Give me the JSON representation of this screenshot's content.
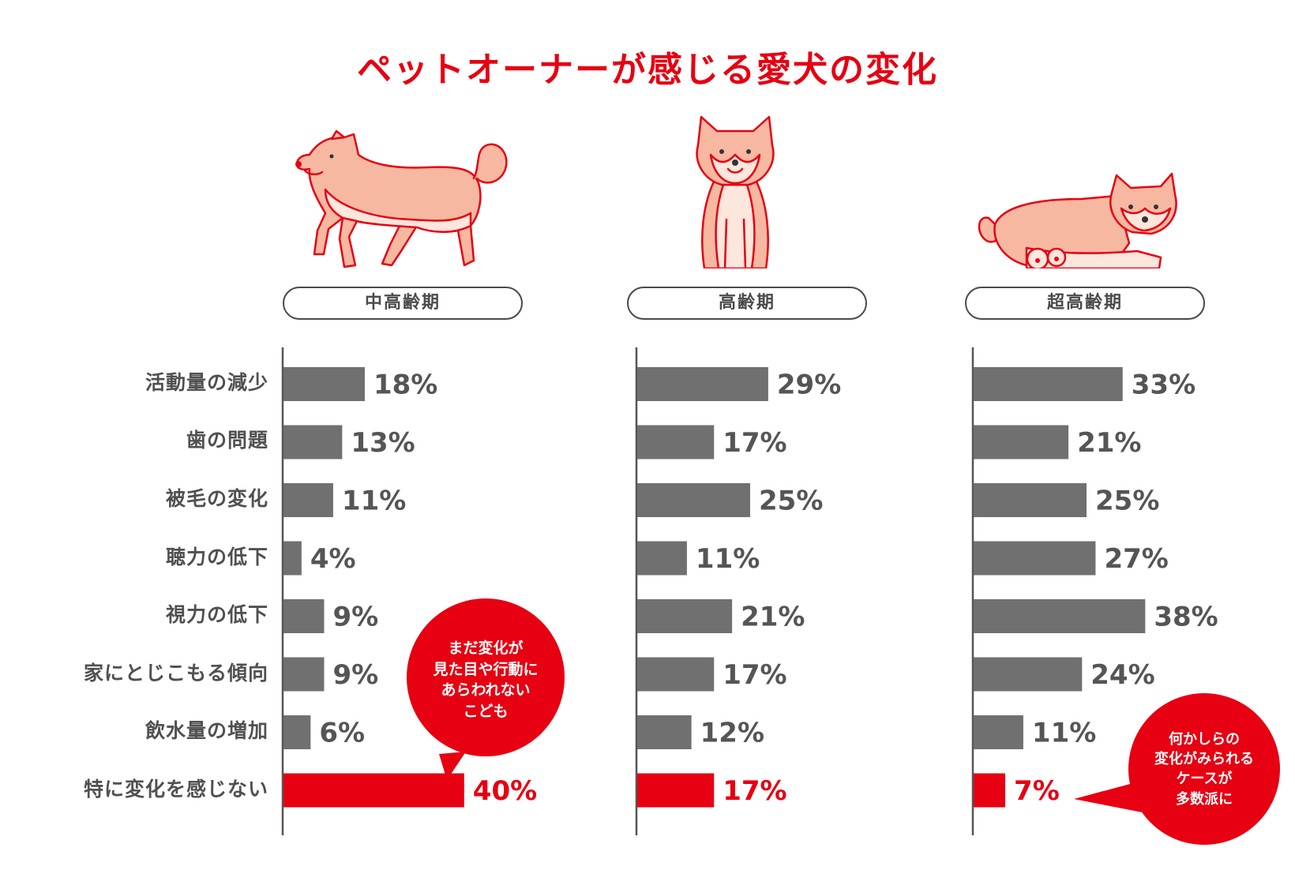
{
  "title": "ペットオーナーが感じる愛犬の変化",
  "colors": {
    "bar": "#707070",
    "highlight": "#e60012",
    "axis": "#555555"
  },
  "icons": [
    "dog-walking-icon",
    "dog-sitting-icon",
    "dog-lying-icon"
  ],
  "chart_data": {
    "type": "bar",
    "orientation": "horizontal",
    "categories": [
      "活動量の減少",
      "歯の問題",
      "被毛の変化",
      "聴力の低下",
      "視力の低下",
      "家にとじこもる傾向",
      "飲水量の増加",
      "特に変化を感じない"
    ],
    "series": [
      {
        "name": "中高齢期",
        "values": [
          18,
          13,
          11,
          4,
          9,
          9,
          6,
          40
        ],
        "labels": [
          "18%",
          "13%",
          "11%",
          "4%",
          "9%",
          "9%",
          "6%",
          "40%"
        ]
      },
      {
        "name": "高齢期",
        "values": [
          29,
          17,
          25,
          11,
          21,
          17,
          12,
          17
        ],
        "labels": [
          "29%",
          "17%",
          "25%",
          "11%",
          "21%",
          "17%",
          "12%",
          "17%"
        ]
      },
      {
        "name": "超高齢期",
        "values": [
          33,
          21,
          25,
          27,
          38,
          24,
          11,
          7
        ],
        "labels": [
          "33%",
          "21%",
          "25%",
          "27%",
          "38%",
          "24%",
          "11%",
          "7%"
        ]
      }
    ],
    "highlight_category": "特に変化を感じない",
    "xlim": [
      0,
      40
    ]
  },
  "callouts": [
    {
      "lines": [
        "まだ変化が",
        "見た目や行動に",
        "あらわれない",
        "こども"
      ]
    },
    {
      "lines": [
        "何かしらの",
        "変化がみられる",
        "ケースが",
        "多数派に"
      ]
    }
  ]
}
